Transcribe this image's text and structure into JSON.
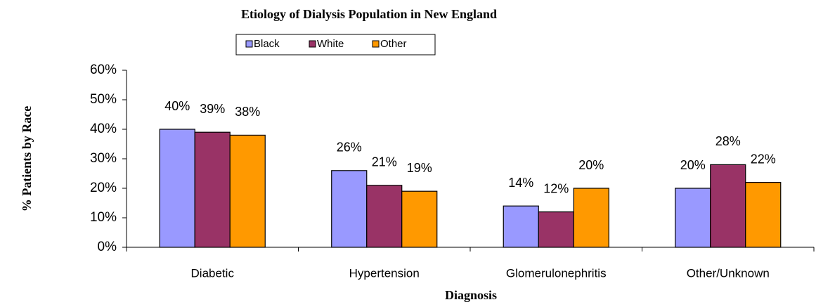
{
  "chart_data": {
    "type": "bar",
    "title": "Etiology of Dialysis Population in New England",
    "x_label": "Diagnosis",
    "y_label": "% Patients by Race",
    "categories": [
      "Diabetic",
      "Hypertension",
      "Glomerulonephritis",
      "Other/Unknown"
    ],
    "series": [
      {
        "name": "Black",
        "color": "#9999ff",
        "values": [
          40,
          26,
          14,
          20
        ],
        "value_labels": [
          "40%",
          "26%",
          "14%",
          "20%"
        ]
      },
      {
        "name": "White",
        "color": "#993366",
        "values": [
          39,
          21,
          12,
          28
        ],
        "value_labels": [
          "39%",
          "21%",
          "12%",
          "28%"
        ]
      },
      {
        "name": "Other",
        "color": "#ff9900",
        "values": [
          38,
          19,
          20,
          22
        ],
        "value_labels": [
          "38%",
          "19%",
          "20%",
          "22%"
        ]
      }
    ],
    "ylim": [
      0,
      60
    ],
    "yticks": [
      {
        "value": 0,
        "label": "0%"
      },
      {
        "value": 10,
        "label": "10%"
      },
      {
        "value": 20,
        "label": "20%"
      },
      {
        "value": 30,
        "label": "30%"
      },
      {
        "value": 40,
        "label": "40%"
      },
      {
        "value": 50,
        "label": "50%"
      },
      {
        "value": 60,
        "label": "60%"
      }
    ],
    "legend": "top"
  }
}
